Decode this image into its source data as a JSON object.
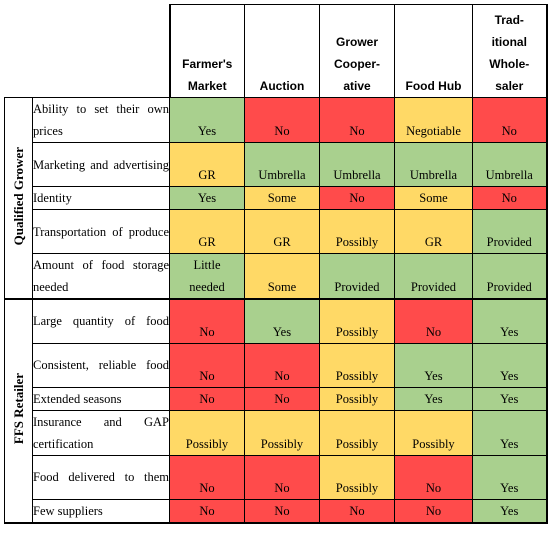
{
  "colors": {
    "green": "#a9d08e",
    "red": "#ff4b4b",
    "yellow": "#ffd966"
  },
  "columns": [
    "Farmer's Market",
    "Auction",
    "Grower Cooper-ative",
    "Food Hub",
    "Trad-itional Whole-saler"
  ],
  "column_lines": [
    [
      "Farmer's",
      "Market"
    ],
    [
      "Auction"
    ],
    [
      "Grower",
      "Cooper-",
      "ative"
    ],
    [
      "Food Hub"
    ],
    [
      "Trad-",
      "itional",
      "Whole-",
      "saler"
    ]
  ],
  "groups": [
    {
      "name": "Qualified Grower",
      "rows": [
        {
          "criterion": "Ability to set their own prices",
          "cells": [
            {
              "text": "Yes",
              "color": "green"
            },
            {
              "text": "No",
              "color": "red"
            },
            {
              "text": "No",
              "color": "red"
            },
            {
              "text": "Negotiable",
              "color": "yellow"
            },
            {
              "text": "No",
              "color": "red"
            }
          ]
        },
        {
          "criterion": "Marketing and advertising",
          "cells": [
            {
              "text": "GR",
              "color": "yellow"
            },
            {
              "text": "Umbrella",
              "color": "green"
            },
            {
              "text": "Umbrella",
              "color": "green"
            },
            {
              "text": "Umbrella",
              "color": "green"
            },
            {
              "text": "Umbrella",
              "color": "green"
            }
          ]
        },
        {
          "criterion": "Identity",
          "cells": [
            {
              "text": "Yes",
              "color": "green"
            },
            {
              "text": "Some",
              "color": "yellow"
            },
            {
              "text": "No",
              "color": "red"
            },
            {
              "text": "Some",
              "color": "yellow"
            },
            {
              "text": "No",
              "color": "red"
            }
          ]
        },
        {
          "criterion": "Transportation of produce",
          "cells": [
            {
              "text": "GR",
              "color": "yellow"
            },
            {
              "text": "GR",
              "color": "yellow"
            },
            {
              "text": "Possibly",
              "color": "yellow"
            },
            {
              "text": "GR",
              "color": "yellow"
            },
            {
              "text": "Provided",
              "color": "green"
            }
          ]
        },
        {
          "criterion": "Amount of food storage needed",
          "cells": [
            {
              "text": "Little needed",
              "color": "green"
            },
            {
              "text": "Some",
              "color": "yellow"
            },
            {
              "text": "Provided",
              "color": "green"
            },
            {
              "text": "Provided",
              "color": "green"
            },
            {
              "text": "Provided",
              "color": "green"
            }
          ]
        }
      ]
    },
    {
      "name": "FFS Retailer",
      "rows": [
        {
          "criterion": "Large quantity of food",
          "cells": [
            {
              "text": "No",
              "color": "red"
            },
            {
              "text": "Yes",
              "color": "green"
            },
            {
              "text": "Possibly",
              "color": "yellow"
            },
            {
              "text": "No",
              "color": "red"
            },
            {
              "text": "Yes",
              "color": "green"
            }
          ]
        },
        {
          "criterion": "Consistent, reliable food",
          "cells": [
            {
              "text": "No",
              "color": "red"
            },
            {
              "text": "No",
              "color": "red"
            },
            {
              "text": "Possibly",
              "color": "yellow"
            },
            {
              "text": "Yes",
              "color": "green"
            },
            {
              "text": "Yes",
              "color": "green"
            }
          ]
        },
        {
          "criterion": "Extended seasons",
          "cells": [
            {
              "text": "No",
              "color": "red"
            },
            {
              "text": "No",
              "color": "red"
            },
            {
              "text": "Possibly",
              "color": "yellow"
            },
            {
              "text": "Yes",
              "color": "green"
            },
            {
              "text": "Yes",
              "color": "green"
            }
          ]
        },
        {
          "criterion": "Insurance and GAP certification",
          "cells": [
            {
              "text": "Possibly",
              "color": "yellow"
            },
            {
              "text": "Possibly",
              "color": "yellow"
            },
            {
              "text": "Possibly",
              "color": "yellow"
            },
            {
              "text": "Possibly",
              "color": "yellow"
            },
            {
              "text": "Yes",
              "color": "green"
            }
          ]
        },
        {
          "criterion": "Food delivered to them",
          "cells": [
            {
              "text": "No",
              "color": "red"
            },
            {
              "text": "No",
              "color": "red"
            },
            {
              "text": "Possibly",
              "color": "yellow"
            },
            {
              "text": "No",
              "color": "red"
            },
            {
              "text": "Yes",
              "color": "green"
            }
          ]
        },
        {
          "criterion": "Few suppliers",
          "cells": [
            {
              "text": "No",
              "color": "red"
            },
            {
              "text": "No",
              "color": "red"
            },
            {
              "text": "No",
              "color": "red"
            },
            {
              "text": "No",
              "color": "red"
            },
            {
              "text": "Yes",
              "color": "green"
            }
          ]
        }
      ]
    }
  ]
}
